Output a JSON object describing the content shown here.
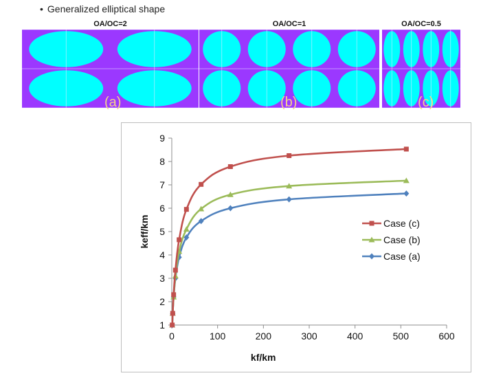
{
  "header": {
    "bullet": "•",
    "text": "Generalized elliptical shape"
  },
  "panels": [
    {
      "title": "OA/OC=2",
      "letter": "(a)",
      "aspect": 2
    },
    {
      "title": "OA/OC=1",
      "letter": "(b)",
      "aspect": 1
    },
    {
      "title": "OA/OC=0.5",
      "letter": "(c)",
      "aspect": 0.5
    }
  ],
  "colors": {
    "matrix": "#9b38ff",
    "inclusion": "#00ffff",
    "case_c": "#c0504d",
    "case_b": "#9bbb59",
    "case_a": "#4f81bd",
    "letter": "#f3d48a"
  },
  "chart_data": {
    "type": "line",
    "xlabel": "kf/km",
    "ylabel": "keff/km",
    "xlim": [
      0,
      600
    ],
    "ylim": [
      1,
      9
    ],
    "xticks": [
      0,
      100,
      200,
      300,
      400,
      500,
      600
    ],
    "yticks": [
      1,
      2,
      3,
      4,
      5,
      6,
      7,
      8,
      9
    ],
    "grid": false,
    "legend_position": "right-middle",
    "series": [
      {
        "name": "Case (c)",
        "marker": "square",
        "color": "#c0504d",
        "x": [
          1,
          2,
          4,
          8,
          16,
          32,
          64,
          128,
          256,
          512
        ],
        "y": [
          1.0,
          1.5,
          2.3,
          3.35,
          4.65,
          5.95,
          7.02,
          7.78,
          8.25,
          8.53
        ]
      },
      {
        "name": "Case (b)",
        "marker": "triangle",
        "color": "#9bbb59",
        "x": [
          1,
          2,
          4,
          8,
          16,
          32,
          64,
          128,
          256,
          512
        ],
        "y": [
          1.0,
          1.5,
          2.2,
          3.1,
          4.15,
          5.1,
          5.97,
          6.58,
          6.95,
          7.18
        ]
      },
      {
        "name": "Case (a)",
        "marker": "diamond",
        "color": "#4f81bd",
        "x": [
          1,
          2,
          4,
          8,
          16,
          32,
          64,
          128,
          256,
          512
        ],
        "y": [
          1.0,
          1.48,
          2.2,
          3.0,
          3.9,
          4.75,
          5.45,
          6.0,
          6.38,
          6.63
        ]
      }
    ]
  }
}
